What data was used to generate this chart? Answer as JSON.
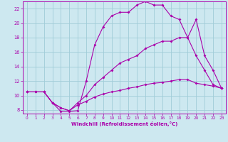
{
  "background_color": "#cde8f0",
  "grid_color": "#a0ccd8",
  "line_color": "#aa00aa",
  "xlabel": "Windchill (Refroidissement éolien,°C)",
  "xlim": [
    -0.5,
    23.5
  ],
  "ylim": [
    7.5,
    23.0
  ],
  "yticks": [
    8,
    10,
    12,
    14,
    16,
    18,
    20,
    22
  ],
  "xticks": [
    0,
    1,
    2,
    3,
    4,
    5,
    6,
    7,
    8,
    9,
    10,
    11,
    12,
    13,
    14,
    15,
    16,
    17,
    18,
    19,
    20,
    21,
    22,
    23
  ],
  "curve1_x": [
    0,
    1,
    2,
    3,
    4,
    5,
    6,
    7,
    8,
    9,
    10,
    11,
    12,
    13,
    14,
    15,
    16,
    17,
    18,
    19,
    20,
    21,
    22,
    23
  ],
  "curve1_y": [
    10.5,
    10.5,
    10.5,
    9.0,
    7.8,
    7.8,
    7.9,
    12.0,
    17.0,
    19.5,
    21.0,
    21.5,
    21.5,
    22.5,
    23.0,
    22.5,
    22.5,
    21.0,
    20.5,
    18.0,
    20.5,
    15.5,
    13.5,
    11.0
  ],
  "curve2_x": [
    0,
    1,
    2,
    3,
    4,
    5,
    6,
    7,
    8,
    9,
    10,
    11,
    12,
    13,
    14,
    15,
    16,
    17,
    18,
    19,
    20,
    21,
    22,
    23
  ],
  "curve2_y": [
    10.5,
    10.5,
    10.5,
    9.0,
    8.3,
    7.9,
    9.0,
    10.0,
    11.5,
    12.5,
    13.5,
    14.5,
    15.0,
    15.5,
    16.5,
    17.0,
    17.5,
    17.5,
    18.0,
    18.0,
    15.5,
    13.5,
    11.5,
    11.0
  ],
  "curve3_x": [
    0,
    1,
    2,
    3,
    4,
    5,
    6,
    7,
    8,
    9,
    10,
    11,
    12,
    13,
    14,
    15,
    16,
    17,
    18,
    19,
    20,
    21,
    22,
    23
  ],
  "curve3_y": [
    10.5,
    10.5,
    10.5,
    9.0,
    8.3,
    7.9,
    8.7,
    9.2,
    9.8,
    10.2,
    10.5,
    10.7,
    11.0,
    11.2,
    11.5,
    11.7,
    11.8,
    12.0,
    12.2,
    12.2,
    11.7,
    11.5,
    11.3,
    11.0
  ]
}
